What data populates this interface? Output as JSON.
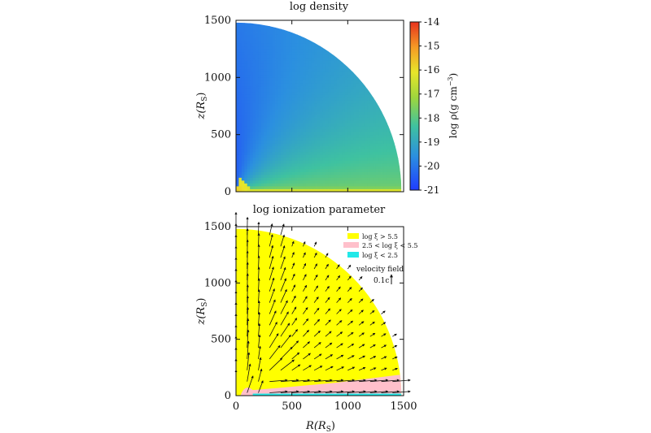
{
  "chart_data": [
    {
      "type": "heatmap",
      "title": "log density",
      "xlabel": "",
      "ylabel": "z(R_S)",
      "ylabel_parts": {
        "main": "z(R",
        "sub": "S",
        "end": ")"
      },
      "xlim": [
        0,
        1500
      ],
      "ylim": [
        0,
        1500
      ],
      "y_ticks": [
        "0",
        "500",
        "1000",
        "1500"
      ],
      "domain_radius": 1480,
      "colorbar": {
        "label": "log ρ(g cm⁻³)",
        "label_parts": {
          "main": "log ρ(g cm",
          "sup": "−3",
          "end": ")"
        },
        "range": [
          -21,
          -14
        ],
        "ticks": [
          "-14",
          "-15",
          "-16",
          "-17",
          "-18",
          "-19",
          "-20",
          "-21"
        ],
        "colors": [
          "#1f3cff",
          "#2b8fe0",
          "#3fc2a0",
          "#9ed63d",
          "#e8e62a",
          "#f59a25",
          "#e8321e"
        ]
      },
      "field_description_values": {
        "polar_axis_value": -20.6,
        "equator_value": -17.8,
        "midplane_value": -15.9,
        "outer_edge_value": -19.3
      }
    },
    {
      "type": "heatmap",
      "title": "log ionization parameter",
      "xlabel": "R(R_S)",
      "xlabel_parts": {
        "main": "R(R",
        "sub": "S",
        "end": ")"
      },
      "ylabel": "z(R_S)",
      "ylabel_parts": {
        "main": "z(R",
        "sub": "S",
        "end": ")"
      },
      "xlim": [
        0,
        1500
      ],
      "ylim": [
        0,
        1500
      ],
      "x_ticks": [
        "0",
        "500",
        "1000",
        "1500"
      ],
      "y_ticks": [
        "0",
        "500",
        "1000",
        "1500"
      ],
      "domain_radius": 1480,
      "legend_placement": "top-right",
      "regions": [
        {
          "label": "log ξ > 5.5",
          "color": "#ffff00"
        },
        {
          "label": "2.5 < log ξ < 5.5",
          "color": "#ffc0cb"
        },
        {
          "label": "log ξ < 2.5",
          "color": "#22e8e8"
        }
      ],
      "region_boundaries_z": {
        "pink_top_at_R1450": 190,
        "cyan_top": 18
      },
      "velocity_key": {
        "title": "velocity field",
        "label": "0.1c"
      }
    }
  ]
}
